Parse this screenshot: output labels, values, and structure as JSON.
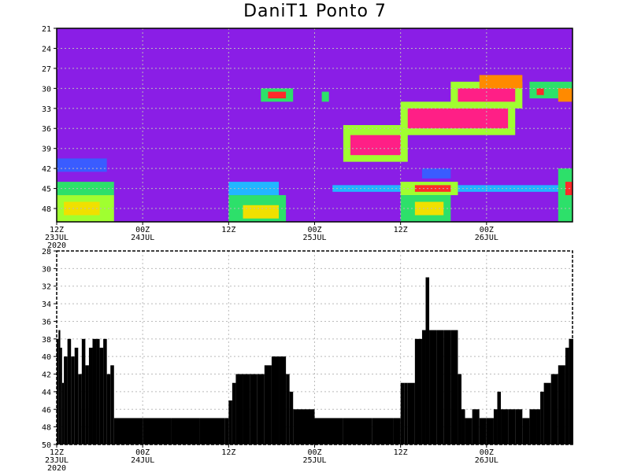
{
  "title": "DaniT1 Ponto 7",
  "colors": {
    "background": "#8a1ee6",
    "grid": "#bbbbbb",
    "scale": [
      "#8a1ee6",
      "#3a5cff",
      "#22b6ff",
      "#2de06a",
      "#a0ff30",
      "#f0e000",
      "#ff8a00",
      "#ff2a2a",
      "#ff1f86"
    ],
    "bars": "#000000"
  },
  "x_axis": {
    "ticks": [
      {
        "t": 0,
        "label1": "12Z",
        "label2": "23JUL",
        "label3": "2020"
      },
      {
        "t": 12,
        "label1": "00Z",
        "label2": "24JUL",
        "label3": ""
      },
      {
        "t": 24,
        "label1": "12Z",
        "label2": "",
        "label3": ""
      },
      {
        "t": 36,
        "label1": "00Z",
        "label2": "25JUL",
        "label3": ""
      },
      {
        "t": 48,
        "label1": "12Z",
        "label2": "",
        "label3": ""
      },
      {
        "t": 60,
        "label1": "00Z",
        "label2": "26JUL",
        "label3": ""
      }
    ]
  },
  "chart_data": [
    {
      "type": "heatmap",
      "title": "DaniT1 Ponto 7",
      "y_ticks": [
        "21",
        "24",
        "27",
        "30",
        "33",
        "36",
        "39",
        "42",
        "45",
        "48"
      ],
      "ylim": [
        21,
        50
      ],
      "xlim_hours": [
        0,
        72
      ],
      "grid": true,
      "cells": [
        {
          "t0": 0,
          "t1": 7,
          "y0": 40.5,
          "y1": 42.5,
          "level": 1
        },
        {
          "t0": 0,
          "t1": 8,
          "y0": 44,
          "y1": 46,
          "level": 3
        },
        {
          "t0": 0,
          "t1": 8,
          "y0": 46,
          "y1": 50,
          "level": 4
        },
        {
          "t0": 1,
          "t1": 6,
          "y0": 47,
          "y1": 49,
          "level": 5
        },
        {
          "t0": 24,
          "t1": 31,
          "y0": 44,
          "y1": 46,
          "level": 2
        },
        {
          "t0": 24,
          "t1": 32,
          "y0": 46,
          "y1": 50,
          "level": 3
        },
        {
          "t0": 26,
          "t1": 31,
          "y0": 47.5,
          "y1": 49.5,
          "level": 5
        },
        {
          "t0": 28.5,
          "t1": 33,
          "y0": 30,
          "y1": 32,
          "level": 3
        },
        {
          "t0": 29.5,
          "t1": 32,
          "y0": 30.5,
          "y1": 31.5,
          "level": 7
        },
        {
          "t0": 37,
          "t1": 38,
          "y0": 30.5,
          "y1": 32,
          "level": 3
        },
        {
          "t0": 40,
          "t1": 49,
          "y0": 35.5,
          "y1": 41,
          "level": 4
        },
        {
          "t0": 41,
          "t1": 48,
          "y0": 37,
          "y1": 40,
          "level": 8
        },
        {
          "t0": 48,
          "t1": 64,
          "y0": 32,
          "y1": 37,
          "level": 4
        },
        {
          "t0": 49,
          "t1": 63,
          "y0": 33,
          "y1": 36,
          "level": 8
        },
        {
          "t0": 55,
          "t1": 65,
          "y0": 29,
          "y1": 33,
          "level": 4
        },
        {
          "t0": 56,
          "t1": 64,
          "y0": 30,
          "y1": 32,
          "level": 8
        },
        {
          "t0": 59,
          "t1": 65,
          "y0": 28,
          "y1": 30,
          "level": 6
        },
        {
          "t0": 66,
          "t1": 72,
          "y0": 29,
          "y1": 31.5,
          "level": 3
        },
        {
          "t0": 67,
          "t1": 68,
          "y0": 30,
          "y1": 31,
          "level": 7
        },
        {
          "t0": 70,
          "t1": 72,
          "y0": 30,
          "y1": 32,
          "level": 6
        },
        {
          "t0": 38.5,
          "t1": 72,
          "y0": 44.5,
          "y1": 45.5,
          "level": 2
        },
        {
          "t0": 48,
          "t1": 56,
          "y0": 44,
          "y1": 46,
          "level": 4
        },
        {
          "t0": 50,
          "t1": 55,
          "y0": 44.5,
          "y1": 45.5,
          "level": 7
        },
        {
          "t0": 48,
          "t1": 55,
          "y0": 46,
          "y1": 50,
          "level": 3
        },
        {
          "t0": 50,
          "t1": 54,
          "y0": 47,
          "y1": 49,
          "level": 5
        },
        {
          "t0": 51,
          "t1": 55,
          "y0": 42,
          "y1": 43.5,
          "level": 1
        },
        {
          "t0": 70,
          "t1": 72,
          "y0": 42,
          "y1": 50,
          "level": 3
        },
        {
          "t0": 71,
          "t1": 72,
          "y0": 44,
          "y1": 46,
          "level": 7
        }
      ]
    },
    {
      "type": "bar",
      "y_ticks": [
        "28",
        "30",
        "32",
        "34",
        "36",
        "38",
        "40",
        "42",
        "44",
        "46",
        "48",
        "50"
      ],
      "ylim": [
        28,
        50
      ],
      "baseline": 50,
      "grid": true,
      "x_hours": [
        0,
        0.25,
        0.5,
        0.75,
        1,
        1.5,
        2,
        2.5,
        3,
        3.5,
        4,
        4.5,
        5,
        5.5,
        6,
        6.5,
        7,
        7.5,
        8,
        12,
        16,
        20,
        23.5,
        24,
        24.5,
        25,
        26,
        27,
        28,
        29,
        30,
        31,
        32,
        32.5,
        33,
        36,
        40,
        44,
        47,
        48,
        48.5,
        49,
        50,
        51,
        51.5,
        52,
        53,
        54,
        55,
        56,
        56.5,
        57,
        58,
        59,
        60,
        61,
        61.5,
        62,
        63,
        64,
        65,
        66,
        67,
        67.5,
        68,
        69,
        70,
        71,
        71.5,
        72
      ],
      "values": [
        38,
        37,
        39,
        43,
        40,
        38,
        40,
        39,
        42,
        38,
        41,
        39,
        38,
        38,
        39,
        38,
        42,
        41,
        47,
        47,
        47,
        47,
        47,
        45,
        43,
        42,
        42,
        42,
        42,
        41,
        40,
        40,
        42,
        44,
        46,
        47,
        47,
        47,
        47,
        43,
        43,
        43,
        38,
        37,
        31,
        37,
        37,
        37,
        37,
        42,
        46,
        47,
        46,
        47,
        47,
        46,
        44,
        46,
        46,
        46,
        47,
        46,
        46,
        44,
        43,
        42,
        41,
        39,
        38,
        38
      ]
    }
  ]
}
